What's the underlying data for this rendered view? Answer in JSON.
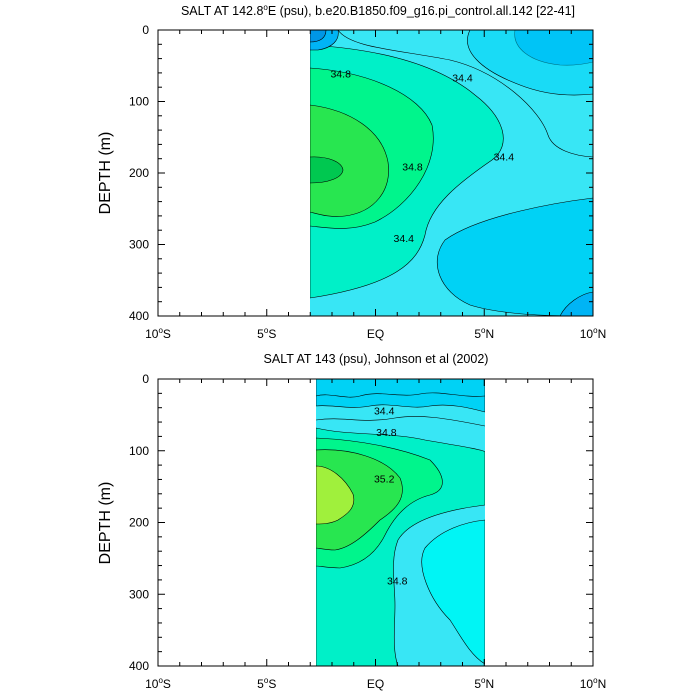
{
  "chart_data": [
    {
      "type": "contour",
      "title": "SALT AT 142.8°E (psu), b.e20.B1850.f09_g16.pi_control.all.142 [22-41]",
      "title_parts": {
        "prefix": "SALT AT 142.8",
        "degree": "o",
        "suffix": "E (psu), b.e20.B1850.f09_g16.pi_control.all.142 [22-41]"
      },
      "ylabel": "DEPTH (m)",
      "xlim": [
        -10,
        10
      ],
      "ylim": [
        400,
        0
      ],
      "data_xrange": [
        -3.2,
        10
      ],
      "xticks": [
        {
          "lat": -10,
          "num": "10",
          "deg": "o",
          "hemi": "S"
        },
        {
          "lat": -5,
          "num": "5",
          "deg": "o",
          "hemi": "S"
        },
        {
          "lat": 0,
          "num": "EQ",
          "deg": "",
          "hemi": ""
        },
        {
          "lat": 5,
          "num": "5",
          "deg": "o",
          "hemi": "N"
        },
        {
          "lat": 10,
          "num": "10",
          "deg": "o",
          "hemi": "N"
        }
      ],
      "yticks": [
        "0",
        "100",
        "200",
        "300",
        "400"
      ],
      "contour_labels": [
        {
          "text": "34.8",
          "lat": -1.6,
          "depth": 62
        },
        {
          "text": "34.4",
          "lat": 4.0,
          "depth": 68
        },
        {
          "text": "34.8",
          "lat": 1.7,
          "depth": 192
        },
        {
          "text": "34.4",
          "lat": 5.9,
          "depth": 178
        },
        {
          "text": "34.4",
          "lat": 1.3,
          "depth": 292
        }
      ]
    },
    {
      "type": "contour",
      "title": "SALT AT 143 (psu), Johnson et al (2002)",
      "ylabel": "DEPTH (m)",
      "xlim": [
        -10,
        10
      ],
      "ylim": [
        400,
        0
      ],
      "data_xrange": [
        -2.8,
        5
      ],
      "xticks": [
        {
          "lat": -10,
          "num": "10",
          "deg": "o",
          "hemi": "S"
        },
        {
          "lat": -5,
          "num": "5",
          "deg": "o",
          "hemi": "S"
        },
        {
          "lat": 0,
          "num": "EQ",
          "deg": "",
          "hemi": ""
        },
        {
          "lat": 5,
          "num": "5",
          "deg": "o",
          "hemi": "N"
        },
        {
          "lat": 10,
          "num": "10",
          "deg": "o",
          "hemi": "N"
        }
      ],
      "yticks": [
        "0",
        "100",
        "200",
        "300",
        "400"
      ],
      "contour_labels": [
        {
          "text": "34.4",
          "lat": 0.4,
          "depth": 45
        },
        {
          "text": "34.8",
          "lat": 0.5,
          "depth": 75
        },
        {
          "text": "35.2",
          "lat": 0.4,
          "depth": 140
        },
        {
          "text": "34.8",
          "lat": 1.0,
          "depth": 282
        }
      ]
    }
  ],
  "colors": {
    "level_fresh_dark": "#00b4f5",
    "level_fresh": "#00d2f5",
    "level_mid": "#38e6f5",
    "level_mid_hi": "#00f0c8",
    "level_high": "#00f58c",
    "level_higher": "#28e650",
    "level_max": "#a0f03c"
  }
}
